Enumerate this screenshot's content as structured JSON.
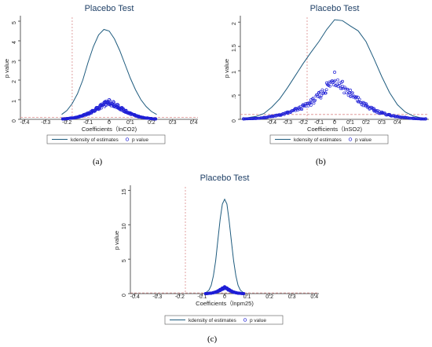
{
  "figure": {
    "captions": [
      "(a)",
      "(b)",
      "(c)"
    ]
  },
  "chart_data": [
    {
      "type": "line",
      "title": "Placebo Test",
      "xlabel": "Coefficients（lnCO2)",
      "ylabel": "p value",
      "xlim": [
        -0.42,
        0.42
      ],
      "ylim": [
        0,
        5.2
      ],
      "xticks": [
        "-0.4",
        "-0.3",
        "-0.2",
        "-0.1",
        "0",
        "0.1",
        "0.2",
        "0.3",
        "0.4"
      ],
      "yticks": [
        "0",
        "1",
        "2",
        "3",
        "4",
        "5"
      ],
      "vline_x": -0.175,
      "hline_y": 0.1,
      "legend": {
        "placement": "bottom",
        "entries": [
          "kdensity of estimates",
          "p value"
        ]
      },
      "colors": {
        "line": "#1e5b7e",
        "points": "#1f1fd6",
        "ref": "#d98a8a"
      },
      "series": [
        {
          "name": "kdensity of estimates",
          "kind": "line",
          "x": [
            -0.225,
            -0.2,
            -0.175,
            -0.15,
            -0.125,
            -0.1,
            -0.075,
            -0.05,
            -0.025,
            0,
            0.025,
            0.05,
            0.075,
            0.1,
            0.125,
            0.15,
            0.175,
            0.2,
            0.225
          ],
          "y": [
            0.25,
            0.45,
            0.8,
            1.3,
            2.0,
            2.9,
            3.7,
            4.3,
            4.58,
            4.5,
            4.1,
            3.5,
            2.8,
            2.1,
            1.5,
            1.0,
            0.65,
            0.4,
            0.25
          ]
        },
        {
          "name": "p value",
          "kind": "scatter",
          "x": [
            -0.22,
            -0.2,
            -0.18,
            -0.16,
            -0.14,
            -0.12,
            -0.1,
            -0.08,
            -0.06,
            -0.04,
            -0.02,
            0,
            0.02,
            0.04,
            0.06,
            0.08,
            0.1,
            0.12,
            0.14,
            0.16,
            0.18,
            0.2,
            0.22
          ],
          "y": [
            0.02,
            0.04,
            0.07,
            0.1,
            0.16,
            0.24,
            0.33,
            0.45,
            0.6,
            0.75,
            0.9,
            1.0,
            0.9,
            0.75,
            0.6,
            0.45,
            0.33,
            0.24,
            0.16,
            0.1,
            0.07,
            0.04,
            0.02
          ]
        }
      ]
    },
    {
      "type": "line",
      "title": "Placebo Test",
      "xlabel": "Coefficients（lnSO2)",
      "ylabel": "p value",
      "xlim": [
        -0.6,
        0.6
      ],
      "ylim": [
        0,
        2.1
      ],
      "xticks": [
        "-0.4",
        "-0.3",
        "-0.2",
        "-0.1",
        "0",
        "0.1",
        "0.2",
        "0.3",
        "0.4"
      ],
      "yticks": [
        "0",
        ".5",
        "1",
        "1.5",
        "2"
      ],
      "vline_x": -0.175,
      "hline_y": 0.1,
      "legend": {
        "placement": "bottom",
        "entries": [
          "kdensity of estimates",
          "p value"
        ]
      },
      "colors": {
        "line": "#1e5b7e",
        "points": "#1f1fd6",
        "ref": "#d98a8a"
      },
      "series": [
        {
          "name": "kdensity of estimates",
          "kind": "line",
          "x": [
            -0.58,
            -0.5,
            -0.45,
            -0.4,
            -0.35,
            -0.3,
            -0.25,
            -0.2,
            -0.15,
            -0.1,
            -0.05,
            0,
            0.05,
            0.1,
            0.15,
            0.2,
            0.25,
            0.3,
            0.35,
            0.4,
            0.45,
            0.5,
            0.55,
            0.58
          ],
          "y": [
            0.02,
            0.06,
            0.12,
            0.25,
            0.42,
            0.65,
            0.9,
            1.15,
            1.38,
            1.6,
            1.85,
            2.05,
            2.03,
            1.92,
            1.82,
            1.6,
            1.25,
            0.88,
            0.55,
            0.3,
            0.15,
            0.07,
            0.03,
            0.02
          ]
        },
        {
          "name": "p value",
          "kind": "scatter",
          "x": [
            -0.58,
            -0.5,
            -0.45,
            -0.4,
            -0.35,
            -0.3,
            -0.25,
            -0.2,
            -0.15,
            -0.1,
            -0.05,
            0,
            0.05,
            0.1,
            0.15,
            0.2,
            0.25,
            0.3,
            0.35,
            0.4,
            0.45,
            0.5,
            0.55,
            0.58
          ],
          "y": [
            0.01,
            0.02,
            0.04,
            0.07,
            0.1,
            0.15,
            0.22,
            0.3,
            0.4,
            0.55,
            0.75,
            0.97,
            0.78,
            0.6,
            0.45,
            0.32,
            0.22,
            0.15,
            0.1,
            0.06,
            0.04,
            0.02,
            0.01,
            0.01
          ]
        }
      ]
    },
    {
      "type": "line",
      "title": "Placebo Test",
      "xlabel": "Coefficients（lnpm25)",
      "ylabel": "p value",
      "xlim": [
        -0.42,
        0.42
      ],
      "ylim": [
        0,
        15.5
      ],
      "xticks": [
        "-0.4",
        "-0.3",
        "-0.2",
        "-0.1",
        "0",
        "0.1",
        "0.2",
        "0.3",
        "0.4"
      ],
      "yticks": [
        "0",
        "5",
        "10",
        "15"
      ],
      "vline_x": -0.175,
      "hline_y": 0.1,
      "legend": {
        "placement": "bottom",
        "entries": [
          "kdensity of estimates",
          "p value"
        ]
      },
      "colors": {
        "line": "#1e5b7e",
        "points": "#1f1fd6",
        "ref": "#d98a8a"
      },
      "series": [
        {
          "name": "kdensity of estimates",
          "kind": "line",
          "x": [
            -0.085,
            -0.07,
            -0.06,
            -0.05,
            -0.04,
            -0.03,
            -0.02,
            -0.01,
            0,
            0.01,
            0.02,
            0.03,
            0.04,
            0.05,
            0.06,
            0.07,
            0.085
          ],
          "y": [
            0.1,
            0.5,
            1.2,
            2.6,
            4.8,
            7.8,
            10.8,
            13.0,
            13.7,
            13.0,
            10.6,
            7.6,
            4.8,
            2.6,
            1.2,
            0.5,
            0.1
          ]
        },
        {
          "name": "p value",
          "kind": "scatter",
          "x": [
            -0.085,
            -0.07,
            -0.06,
            -0.05,
            -0.04,
            -0.03,
            -0.02,
            -0.01,
            0,
            0.01,
            0.02,
            0.03,
            0.04,
            0.05,
            0.06,
            0.07,
            0.085
          ],
          "y": [
            0.01,
            0.04,
            0.08,
            0.15,
            0.25,
            0.4,
            0.6,
            0.82,
            1.0,
            0.82,
            0.6,
            0.4,
            0.25,
            0.15,
            0.08,
            0.04,
            0.01
          ]
        }
      ]
    }
  ]
}
